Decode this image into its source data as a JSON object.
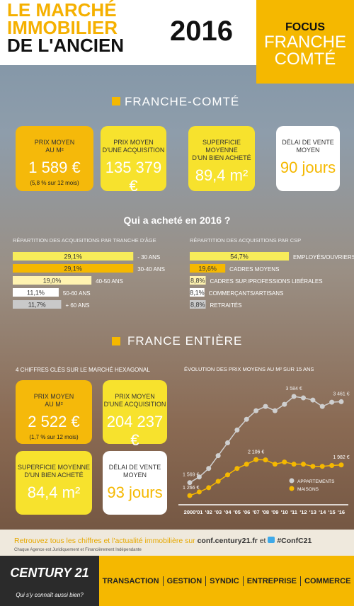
{
  "header": {
    "title_lines": [
      "LE MARCHÉ",
      "IMMOBILIER",
      "DE L'ANCIEN"
    ],
    "year": "2016",
    "focus": "FOCUS",
    "region_lines": [
      "FRANCHE",
      "COMTÉ"
    ]
  },
  "region_section": {
    "title": "FRANCHE-COMTÉ",
    "cards": [
      {
        "label_lines": [
          "PRIX MOYEN",
          "AU M²"
        ],
        "value": "1 589 €",
        "note": "(5,8 % sur 12 mois)"
      },
      {
        "label_lines": [
          "PRIX MOYEN",
          "D'UNE ACQUISITION"
        ],
        "value": "135 379 €"
      },
      {
        "label_lines": [
          "SUPERFICIE MOYENNE",
          "D'UN BIEN ACHETÉ"
        ],
        "value": "89,4 m²"
      },
      {
        "label_lines": [
          "DÉLAI DE VENTE",
          "MOYEN"
        ],
        "value": "90 jours"
      }
    ]
  },
  "buyers_title": "Qui a acheté en 2016 ?",
  "france_section": {
    "title": "FRANCE ENTIÈRE",
    "subtitle": "4 CHIFFRES CLÉS SUR LE MARCHÉ HEXAGONAL",
    "cards": [
      {
        "label_lines": [
          "PRIX MOYEN",
          "AU M²"
        ],
        "value": "2 522 €",
        "note": "(1,7 % sur 12 mois)"
      },
      {
        "label_lines": [
          "PRIX MOYEN",
          "D'UNE ACQUISITION"
        ],
        "value": "204 237 €"
      },
      {
        "label_lines": [
          "SUPERFICIE MOYENNE",
          "D'UN BIEN ACHETÉ"
        ],
        "value": "84,4 m²"
      },
      {
        "label_lines": [
          "DÉLAI DE VENTE",
          "MOYEN"
        ],
        "value": "93 jours"
      }
    ]
  },
  "footer": {
    "line": "Retrouvez tous les chiffres et l'actualité immobilière sur",
    "site": "conf.century21.fr",
    "and": "et",
    "hashtag": "#ConfC21",
    "disclaimer": "Chaque Agence est Juridiquement et Financièrement Indépendante",
    "logo": "CENTURY 21",
    "slogan": "Qui s'y connaît aussi bien?",
    "nav": [
      "TRANSACTION",
      "GESTION",
      "SYNDIC",
      "ENTREPRISE",
      "COMMERCE"
    ]
  },
  "chart_data": [
    {
      "type": "hbar",
      "title": "RÉPARTITION DES ACQUISITIONS PAR TRANCHE D'ÂGE",
      "categories": [
        "- 30 ANS",
        "30-40 ANS",
        "40-50 ANS",
        "50-60 ANS",
        "+ 60 ANS"
      ],
      "values": [
        29.1,
        29.1,
        19.0,
        11.1,
        11.7
      ],
      "value_labels": [
        "29,1%",
        "29,1%",
        "19,0%",
        "11,1%",
        "11,7%"
      ],
      "colors": [
        "#f7ec5a",
        "#f5b800",
        "#fff3b0",
        "#ffffff",
        "#c9c9c9"
      ]
    },
    {
      "type": "hbar",
      "title": "RÉPARTITION DES ACQUISITIONS PAR CSP",
      "categories": [
        "EMPLOYÉS/OUVRIERS",
        "CADRES MOYENS",
        "CADRES SUP./PROFESSIONS LIBÉRALES",
        "COMMERÇANTS/ARTISANS",
        "RETRAITÉS"
      ],
      "values": [
        54.7,
        19.6,
        8.8,
        8.1,
        8.8
      ],
      "value_labels": [
        "54,7%",
        "19,6%",
        "8,8%",
        "8,1%",
        "8,8%"
      ],
      "colors": [
        "#f7ec5a",
        "#f5b800",
        "#fff3b0",
        "#ffffff",
        "#c9c9c9"
      ]
    },
    {
      "type": "line",
      "title": "ÉVOLUTION DES PRIX MOYENS AU M² SUR 15 ANS",
      "categories": [
        "2000",
        "'01",
        "'02",
        "'03",
        "'04",
        "'05",
        "'06",
        "'07",
        "'08",
        "'09",
        "'10",
        "'11",
        "'12",
        "'13",
        "'14",
        "'15",
        "'16"
      ],
      "series": [
        {
          "name": "APPARTEMENTS",
          "color": "#cfcfcf",
          "values": [
            1569,
            1700,
            1900,
            2200,
            2500,
            2800,
            3050,
            3250,
            3350,
            3250,
            3400,
            3584,
            3550,
            3500,
            3350,
            3450,
            3461
          ],
          "value_labels": [
            "1 569 €",
            null,
            null,
            null,
            null,
            null,
            null,
            null,
            null,
            null,
            null,
            "3 584 €",
            null,
            null,
            null,
            null,
            "3 461 €"
          ]
        },
        {
          "name": "MAISONS",
          "color": "#f5b800",
          "values": [
            1266,
            1350,
            1450,
            1600,
            1750,
            1900,
            2000,
            2106,
            2100,
            2000,
            2050,
            2000,
            2000,
            1950,
            1950,
            1970,
            1982
          ],
          "value_labels": [
            "1 266 €",
            null,
            null,
            null,
            null,
            null,
            null,
            "2 106 €",
            null,
            null,
            null,
            null,
            null,
            null,
            null,
            null,
            "1 982 €"
          ]
        }
      ]
    }
  ]
}
